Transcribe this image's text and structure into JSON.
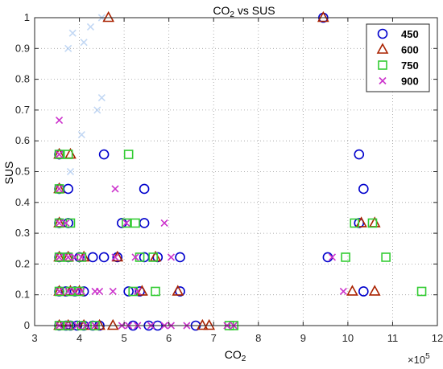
{
  "chart_data": {
    "type": "scatter",
    "title_main": "CO",
    "title_sub": "2",
    "title_rest": " vs SUS",
    "xlabel_main": "CO",
    "xlabel_sub": "2",
    "ylabel": "SUS",
    "x_exponent_base": "×10",
    "x_exponent_power": "5",
    "xlim": [
      3,
      12
    ],
    "ylim": [
      0,
      1
    ],
    "x_ticks": [
      "3",
      "4",
      "5",
      "6",
      "7",
      "8",
      "9",
      "10",
      "11",
      "12"
    ],
    "y_ticks": [
      "0",
      "0.1",
      "0.2",
      "0.3",
      "0.4",
      "0.5",
      "0.6",
      "0.7",
      "0.8",
      "0.9",
      "1"
    ],
    "grid": "dotted",
    "legend_position": "top-right",
    "series": [
      {
        "name": "450",
        "marker": "circle",
        "color": "#0000cc",
        "points": [
          [
            3.55,
            0
          ],
          [
            3.7,
            0
          ],
          [
            3.8,
            0
          ],
          [
            3.95,
            0
          ],
          [
            4.1,
            0
          ],
          [
            4.3,
            0
          ],
          [
            4.45,
            0
          ],
          [
            5.2,
            0
          ],
          [
            5.55,
            0
          ],
          [
            5.75,
            0
          ],
          [
            6.6,
            0
          ],
          [
            3.55,
            0.111
          ],
          [
            3.7,
            0.111
          ],
          [
            3.9,
            0.111
          ],
          [
            4.1,
            0.111
          ],
          [
            5.1,
            0.111
          ],
          [
            5.35,
            0.111
          ],
          [
            6.25,
            0.111
          ],
          [
            10.35,
            0.111
          ],
          [
            3.55,
            0.222
          ],
          [
            3.75,
            0.222
          ],
          [
            4.0,
            0.222
          ],
          [
            4.3,
            0.222
          ],
          [
            4.55,
            0.222
          ],
          [
            4.85,
            0.222
          ],
          [
            5.45,
            0.222
          ],
          [
            5.75,
            0.222
          ],
          [
            6.25,
            0.222
          ],
          [
            9.55,
            0.222
          ],
          [
            3.55,
            0.333
          ],
          [
            3.75,
            0.333
          ],
          [
            4.95,
            0.333
          ],
          [
            5.45,
            0.333
          ],
          [
            10.25,
            0.333
          ],
          [
            3.55,
            0.444
          ],
          [
            3.75,
            0.444
          ],
          [
            5.45,
            0.444
          ],
          [
            10.35,
            0.444
          ],
          [
            3.55,
            0.556
          ],
          [
            4.55,
            0.556
          ],
          [
            10.25,
            0.556
          ],
          [
            9.45,
            1.0
          ]
        ]
      },
      {
        "name": "600",
        "marker": "triangle",
        "color": "#aa2200",
        "points": [
          [
            3.55,
            0
          ],
          [
            3.75,
            0
          ],
          [
            4.1,
            0
          ],
          [
            4.45,
            0
          ],
          [
            4.75,
            0
          ],
          [
            6.75,
            0
          ],
          [
            6.9,
            0
          ],
          [
            3.55,
            0.111
          ],
          [
            3.8,
            0.111
          ],
          [
            4.0,
            0.111
          ],
          [
            5.4,
            0.111
          ],
          [
            6.2,
            0.111
          ],
          [
            10.1,
            0.111
          ],
          [
            10.6,
            0.111
          ],
          [
            3.55,
            0.222
          ],
          [
            3.75,
            0.222
          ],
          [
            4.1,
            0.222
          ],
          [
            4.85,
            0.222
          ],
          [
            5.7,
            0.222
          ],
          [
            3.55,
            0.333
          ],
          [
            10.3,
            0.333
          ],
          [
            10.6,
            0.333
          ],
          [
            3.55,
            0.444
          ],
          [
            3.55,
            0.556
          ],
          [
            3.8,
            0.556
          ],
          [
            4.65,
            1.0
          ],
          [
            9.45,
            1.0
          ]
        ]
      },
      {
        "name": "750",
        "marker": "square",
        "color": "#33cc33",
        "points": [
          [
            3.55,
            0
          ],
          [
            3.75,
            0
          ],
          [
            4.05,
            0
          ],
          [
            4.35,
            0
          ],
          [
            7.35,
            0
          ],
          [
            7.45,
            0
          ],
          [
            3.55,
            0.111
          ],
          [
            3.8,
            0.111
          ],
          [
            4.0,
            0.111
          ],
          [
            5.2,
            0.111
          ],
          [
            5.7,
            0.111
          ],
          [
            11.65,
            0.111
          ],
          [
            3.55,
            0.222
          ],
          [
            3.75,
            0.222
          ],
          [
            4.05,
            0.222
          ],
          [
            5.35,
            0.222
          ],
          [
            5.65,
            0.222
          ],
          [
            9.95,
            0.222
          ],
          [
            10.85,
            0.222
          ],
          [
            3.55,
            0.333
          ],
          [
            3.8,
            0.333
          ],
          [
            5.05,
            0.333
          ],
          [
            5.25,
            0.333
          ],
          [
            10.15,
            0.333
          ],
          [
            10.55,
            0.333
          ],
          [
            3.55,
            0.444
          ],
          [
            3.55,
            0.556
          ],
          [
            3.75,
            0.556
          ],
          [
            5.1,
            0.556
          ]
        ]
      },
      {
        "name": "900",
        "marker": "x",
        "color": "#cc33cc",
        "points": [
          [
            3.55,
            0
          ],
          [
            3.75,
            0
          ],
          [
            3.95,
            0
          ],
          [
            4.15,
            0
          ],
          [
            4.35,
            0
          ],
          [
            4.95,
            0
          ],
          [
            5.1,
            0
          ],
          [
            5.3,
            0
          ],
          [
            5.6,
            0
          ],
          [
            5.9,
            0
          ],
          [
            6.05,
            0
          ],
          [
            6.4,
            0
          ],
          [
            7.3,
            0
          ],
          [
            7.45,
            0
          ],
          [
            3.55,
            0.111
          ],
          [
            3.75,
            0.111
          ],
          [
            3.9,
            0.111
          ],
          [
            4.05,
            0.111
          ],
          [
            4.35,
            0.111
          ],
          [
            4.45,
            0.111
          ],
          [
            4.75,
            0.111
          ],
          [
            5.3,
            0.111
          ],
          [
            9.9,
            0.111
          ],
          [
            3.55,
            0.222
          ],
          [
            3.75,
            0.222
          ],
          [
            3.9,
            0.222
          ],
          [
            4.05,
            0.222
          ],
          [
            4.8,
            0.222
          ],
          [
            5.25,
            0.222
          ],
          [
            6.05,
            0.222
          ],
          [
            9.65,
            0.222
          ],
          [
            3.55,
            0.333
          ],
          [
            3.7,
            0.333
          ],
          [
            5.05,
            0.333
          ],
          [
            5.9,
            0.333
          ],
          [
            3.55,
            0.444
          ],
          [
            4.8,
            0.444
          ],
          [
            3.55,
            0.556
          ],
          [
            3.55,
            0.667
          ]
        ]
      }
    ],
    "faded_points": [
      [
        3.75,
        0.9
      ],
      [
        3.85,
        0.95
      ],
      [
        4.1,
        0.92
      ],
      [
        4.25,
        0.97
      ],
      [
        4.5,
        1.0
      ],
      [
        4.5,
        0.74
      ],
      [
        4.4,
        0.7
      ],
      [
        4.05,
        0.62
      ],
      [
        3.8,
        0.5
      ]
    ]
  }
}
